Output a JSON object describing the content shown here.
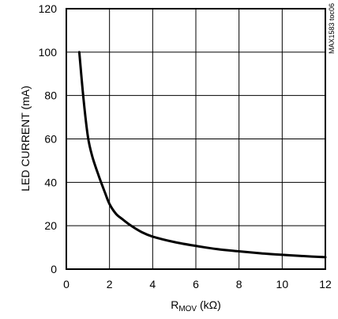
{
  "chart_data": {
    "type": "line",
    "x_axis": {
      "label_main": "R",
      "label_sub": "MOV",
      "label_unit": " (kΩ)",
      "range": [
        0,
        12
      ],
      "ticks": [
        0,
        2,
        4,
        6,
        8,
        10,
        12
      ],
      "tick_labels": [
        "0",
        "2",
        "4",
        "6",
        "8",
        "10",
        "12"
      ]
    },
    "y_axis": {
      "label": "LED CURRENT (mA)",
      "range": [
        0,
        120
      ],
      "ticks": [
        0,
        20,
        40,
        60,
        80,
        100,
        120
      ],
      "tick_labels": [
        "0",
        "20",
        "40",
        "60",
        "80",
        "100",
        "120"
      ]
    },
    "grid": true,
    "series": [
      {
        "x": [
          0.6,
          0.8,
          1.0,
          1.2,
          1.5,
          1.8,
          2.0,
          2.3,
          2.6,
          3.0,
          3.5,
          4.0,
          5.0,
          6.0,
          7.0,
          8.0,
          9.0,
          10.0,
          11.0,
          12.0
        ],
        "y": [
          100,
          78,
          61,
          52,
          43,
          35,
          30,
          25.5,
          23,
          20,
          17,
          15,
          12.5,
          10.7,
          9.2,
          8.2,
          7.3,
          6.6,
          6.0,
          5.5
        ]
      }
    ],
    "annotation": "MAX1583 toc06"
  }
}
